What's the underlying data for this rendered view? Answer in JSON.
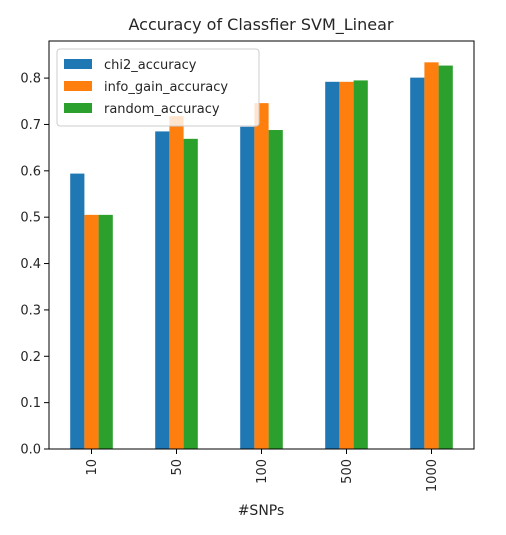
{
  "chart_data": {
    "type": "bar",
    "title": "Accuracy of Classfier SVM_Linear",
    "xlabel": "#SNPs",
    "ylabel": "",
    "categories": [
      "10",
      "50",
      "100",
      "500",
      "1000"
    ],
    "ylim": [
      0.0,
      0.88
    ],
    "yticks": [
      0.0,
      0.1,
      0.2,
      0.3,
      0.4,
      0.5,
      0.6,
      0.7,
      0.8
    ],
    "ytick_labels": [
      "0.0",
      "0.1",
      "0.2",
      "0.3",
      "0.4",
      "0.5",
      "0.6",
      "0.7",
      "0.8"
    ],
    "grid": false,
    "legend_position": "top-left",
    "series": [
      {
        "name": "chi2_accuracy",
        "color": "#1f77b4",
        "values": [
          0.594,
          0.685,
          0.695,
          0.792,
          0.801
        ]
      },
      {
        "name": "info_gain_accuracy",
        "color": "#ff7f0e",
        "values": [
          0.505,
          0.718,
          0.746,
          0.792,
          0.834
        ]
      },
      {
        "name": "random_accuracy",
        "color": "#2ca02c",
        "values": [
          0.505,
          0.669,
          0.688,
          0.795,
          0.827
        ]
      }
    ]
  }
}
